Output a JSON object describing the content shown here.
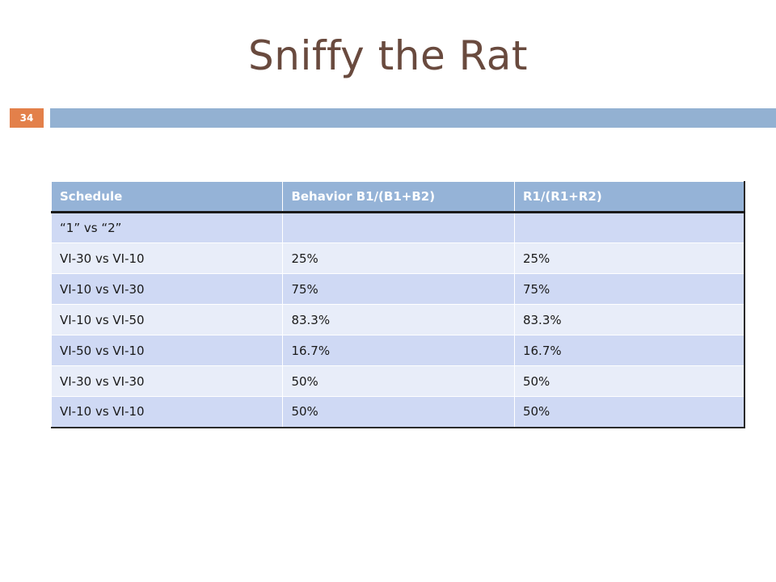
{
  "slide": {
    "title": "Sniffy the Rat",
    "page_number": "34",
    "colors": {
      "title": "#694a3e",
      "accent_bar": "#93b1d2",
      "page_badge": "#e3804a",
      "header_fill": "#95b3d7",
      "row_dark": "#cfd9f4",
      "row_light": "#e8edf9"
    }
  },
  "table": {
    "headers": [
      "Schedule",
      "Behavior  B1/(B1+B2)",
      "R1/(R1+R2)"
    ],
    "rows": [
      [
        "“1” vs “2”",
        "",
        ""
      ],
      [
        "VI-30 vs VI-10",
        "25%",
        "25%"
      ],
      [
        "VI-10 vs VI-30",
        "75%",
        "75%"
      ],
      [
        "VI-10 vs VI-50",
        "83.3%",
        "83.3%"
      ],
      [
        "VI-50 vs VI-10",
        "16.7%",
        "16.7%"
      ],
      [
        "VI-30 vs VI-30",
        "50%",
        "50%"
      ],
      [
        "VI-10 vs VI-10",
        "50%",
        "50%"
      ]
    ]
  }
}
